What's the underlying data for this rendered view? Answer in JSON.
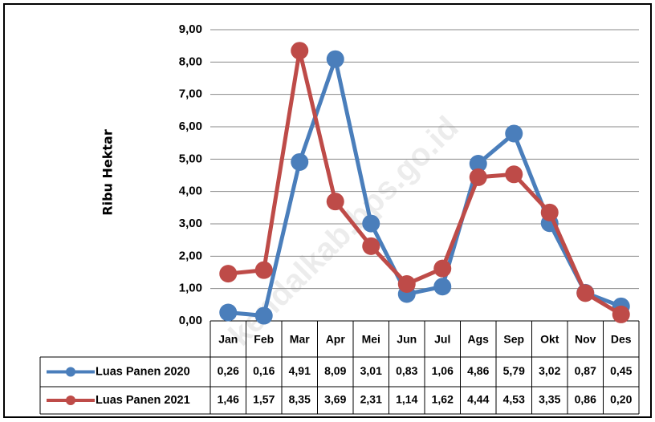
{
  "chart_data": {
    "type": "line",
    "y_label": "Ribu Hektar",
    "watermark": "kendalkab.bps.go.id",
    "categories": [
      "Jan",
      "Feb",
      "Mar",
      "Apr",
      "Mei",
      "Jun",
      "Jul",
      "Ags",
      "Sep",
      "Okt",
      "Nov",
      "Des"
    ],
    "series": [
      {
        "name": "Luas Panen 2020",
        "color": "#4a7ebb",
        "values": [
          0.26,
          0.16,
          4.91,
          8.09,
          3.01,
          0.83,
          1.06,
          4.86,
          5.79,
          3.02,
          0.87,
          0.45
        ],
        "value_labels": [
          "0,26",
          "0,16",
          "4,91",
          "8,09",
          "3,01",
          "0,83",
          "1,06",
          "4,86",
          "5,79",
          "3,02",
          "0,87",
          "0,45"
        ]
      },
      {
        "name": "Luas Panen 2021",
        "color": "#be4b48",
        "values": [
          1.46,
          1.57,
          8.35,
          3.69,
          2.31,
          1.14,
          1.62,
          4.44,
          4.53,
          3.35,
          0.86,
          0.2
        ],
        "value_labels": [
          "1,46",
          "1,57",
          "8,35",
          "3,69",
          "2,31",
          "1,14",
          "1,62",
          "4,44",
          "4,53",
          "3,35",
          "0,86",
          "0,20"
        ]
      }
    ],
    "ylim": [
      0,
      9
    ],
    "yticks": [
      {
        "value": 0,
        "label": "0,00"
      },
      {
        "value": 1,
        "label": "1,00"
      },
      {
        "value": 2,
        "label": "2,00"
      },
      {
        "value": 3,
        "label": "3,00"
      },
      {
        "value": 4,
        "label": "4,00"
      },
      {
        "value": 5,
        "label": "5,00"
      },
      {
        "value": 6,
        "label": "6,00"
      },
      {
        "value": 7,
        "label": "7,00"
      },
      {
        "value": 8,
        "label": "8,00"
      },
      {
        "value": 9,
        "label": "9,00"
      }
    ],
    "grid": true
  }
}
